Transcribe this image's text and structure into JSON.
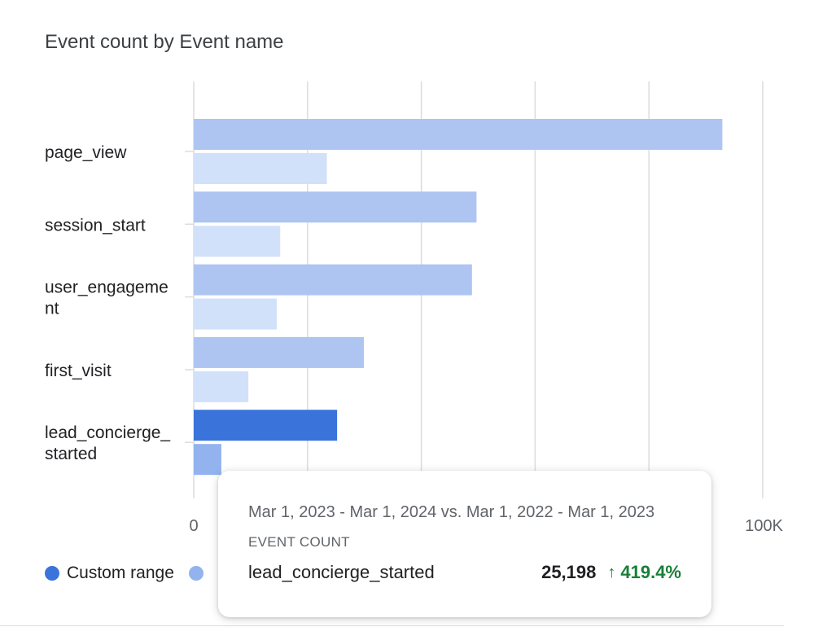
{
  "chart_data": {
    "type": "bar",
    "orientation": "horizontal",
    "title": "Event count by Event name",
    "categories": [
      "page_view",
      "session_start",
      "user_engagement",
      "first_visit",
      "lead_concierge_started"
    ],
    "category_display": [
      [
        "page_view"
      ],
      [
        "session_start"
      ],
      [
        "user_engageme",
        "nt"
      ],
      [
        "first_visit"
      ],
      [
        "lead_concierge_",
        "started"
      ]
    ],
    "series": [
      {
        "name": "Custom range",
        "values": [
          92900,
          49700,
          48900,
          29900,
          25198
        ]
      },
      {
        "values": [
          23400,
          15200,
          14600,
          9600,
          4850
        ]
      }
    ],
    "xlim": [
      0,
      100000
    ],
    "x_gridlines": [
      0,
      20000,
      40000,
      60000,
      80000,
      100000
    ],
    "x_tick_labels": [
      {
        "value": 0,
        "label": "0"
      },
      {
        "value": 100000,
        "label": "100K"
      }
    ],
    "highlighted_category": "lead_concierge_started",
    "grid": true,
    "legend": "bottom-left"
  },
  "colors": {
    "series_primary": "#aec5f2",
    "series_secondary": "#d2e1fa",
    "highlight_primary": "#3a74db",
    "highlight_secondary": "#92b3ee",
    "gridline": "#dadce0",
    "legend_custom": "#3a74db",
    "legend_compare": "#92b3ee"
  },
  "legend": {
    "items": [
      {
        "label": "Custom range",
        "color": "#3a74db"
      },
      {
        "label": "",
        "color": "#92b3ee"
      }
    ]
  },
  "tooltip": {
    "date_range": "Mar 1, 2023 - Mar 1, 2024 vs. Mar 1, 2022 - Mar 1, 2023",
    "metric": "EVENT COUNT",
    "event_name": "lead_concierge_started",
    "value": "25,198",
    "change": "419.4%",
    "change_icon": "arrow-up-icon"
  }
}
